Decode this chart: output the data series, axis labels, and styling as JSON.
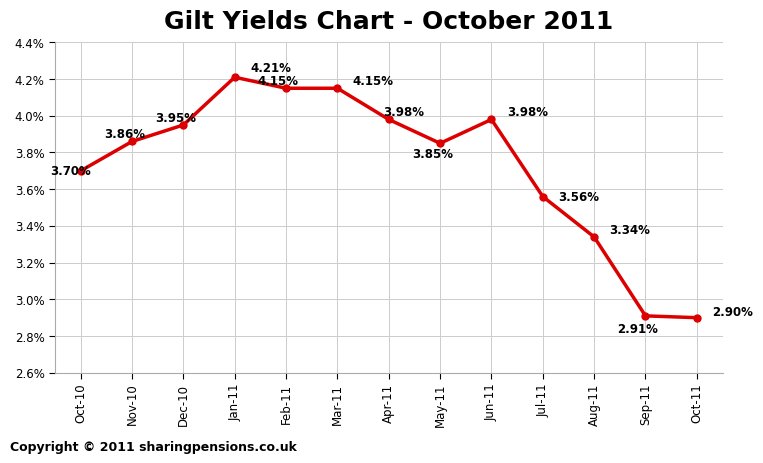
{
  "title": "Gilt Yields Chart - October 2011",
  "copyright": "Copyright © 2011 sharingpensions.co.uk",
  "categories": [
    "Oct-10",
    "Nov-10",
    "Dec-10",
    "Jan-11",
    "Feb-11",
    "Mar-11",
    "Apr-11",
    "May-11",
    "Jun-11",
    "Jul-11",
    "Aug-11",
    "Sep-11",
    "Oct-11"
  ],
  "values": [
    3.7,
    3.86,
    3.95,
    4.21,
    4.15,
    4.15,
    3.98,
    3.85,
    3.98,
    3.56,
    3.34,
    2.91,
    2.9
  ],
  "labels": [
    "3.70%",
    "3.86%",
    "3.95%",
    "4.21%",
    "4.15%",
    "4.15%",
    "3.98%",
    "3.85%",
    "3.98%",
    "3.56%",
    "3.34%",
    "2.91%",
    "2.90%"
  ],
  "label_offsets_x": [
    -0.6,
    -0.55,
    -0.55,
    0.3,
    -0.55,
    0.3,
    -0.1,
    -0.55,
    0.3,
    0.3,
    0.3,
    -0.55,
    0.3
  ],
  "label_offsets_y": [
    0.0,
    0.04,
    0.04,
    0.05,
    0.04,
    0.04,
    0.04,
    -0.06,
    0.04,
    0.0,
    0.04,
    -0.07,
    0.03
  ],
  "line_color": "#dd0000",
  "marker_color": "#dd0000",
  "background_color": "#ffffff",
  "grid_color": "#cccccc",
  "ylim": [
    2.6,
    4.4
  ],
  "yticks": [
    2.6,
    2.8,
    3.0,
    3.2,
    3.4,
    3.6,
    3.8,
    4.0,
    4.2,
    4.4
  ],
  "title_fontsize": 18,
  "label_fontsize": 8.5,
  "tick_fontsize": 8.5,
  "copyright_fontsize": 9,
  "line_width": 2.5,
  "marker_size": 5
}
